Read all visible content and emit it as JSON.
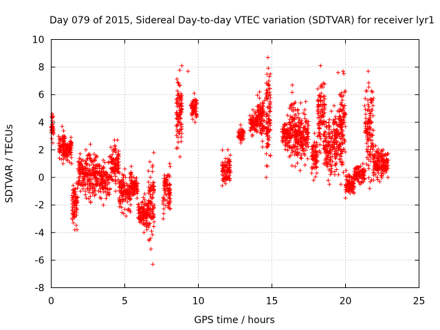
{
  "chart_data": {
    "type": "scatter",
    "title": "Day 079 of 2015, Sidereal Day-to-day VTEC variation (SDTVAR) for receiver lyr1",
    "xlabel": "GPS time / hours",
    "ylabel": "SDTVAR / TECUs",
    "xlim": [
      0,
      25
    ],
    "ylim": [
      -8,
      10
    ],
    "xticks": [
      0,
      5,
      10,
      15,
      20,
      25
    ],
    "yticks": [
      -8,
      -6,
      -4,
      -2,
      0,
      2,
      4,
      6,
      8,
      10
    ],
    "grid": true,
    "marker": "+",
    "color": "#ff0000",
    "series": [
      {
        "name": "SDTVAR",
        "note": "dense plus-marker clusters approximated as segments [x_start, x_end, y_low, y_high]",
        "clusters": [
          [
            0.0,
            0.15,
            2.5,
            4.6
          ],
          [
            0.5,
            1.0,
            1.0,
            3.7
          ],
          [
            1.0,
            1.4,
            1.0,
            2.9
          ],
          [
            1.4,
            1.8,
            -3.8,
            -0.4
          ],
          [
            1.8,
            2.5,
            -1.5,
            2.0
          ],
          [
            2.5,
            3.3,
            -1.8,
            2.4
          ],
          [
            3.3,
            4.0,
            -2.0,
            1.5
          ],
          [
            4.0,
            4.6,
            -1.0,
            2.7
          ],
          [
            4.6,
            5.5,
            -2.8,
            0.8
          ],
          [
            5.5,
            5.9,
            -1.5,
            0.0
          ],
          [
            5.9,
            6.6,
            -4.0,
            -1.2
          ],
          [
            6.6,
            7.0,
            -5.2,
            1.8
          ],
          [
            7.6,
            8.1,
            -3.0,
            1.0
          ],
          [
            8.5,
            8.9,
            1.5,
            8.1
          ],
          [
            9.5,
            9.9,
            4.0,
            6.1
          ],
          [
            11.6,
            12.2,
            -0.6,
            2.0
          ],
          [
            12.7,
            13.1,
            2.5,
            3.8
          ],
          [
            13.5,
            14.0,
            3.0,
            4.9
          ],
          [
            14.0,
            14.5,
            2.2,
            6.2
          ],
          [
            14.6,
            14.9,
            0.0,
            8.7
          ],
          [
            15.7,
            16.2,
            1.5,
            4.5
          ],
          [
            16.2,
            16.6,
            0.8,
            6.7
          ],
          [
            16.6,
            17.0,
            0.5,
            5.4
          ],
          [
            17.0,
            17.5,
            0.9,
            4.9
          ],
          [
            17.7,
            18.1,
            -0.2,
            3.2
          ],
          [
            18.1,
            18.6,
            1.0,
            8.1
          ],
          [
            18.6,
            19.1,
            -0.5,
            4.8
          ],
          [
            19.1,
            19.6,
            0.2,
            5.2
          ],
          [
            19.6,
            20.0,
            -0.5,
            7.7
          ],
          [
            20.0,
            20.6,
            -1.5,
            0.5
          ],
          [
            20.6,
            21.3,
            -0.5,
            1.0
          ],
          [
            21.3,
            21.9,
            -0.8,
            7.7
          ],
          [
            21.9,
            22.5,
            -0.3,
            2.3
          ],
          [
            22.5,
            22.9,
            0.0,
            2.0
          ]
        ],
        "points": [
          [
            9.3,
            7.7
          ],
          [
            6.9,
            -6.3
          ],
          [
            14.4,
            4.8
          ],
          [
            17.3,
            5.5
          ],
          [
            19.5,
            7.6
          ],
          [
            8.6,
            6.9
          ]
        ]
      }
    ]
  }
}
